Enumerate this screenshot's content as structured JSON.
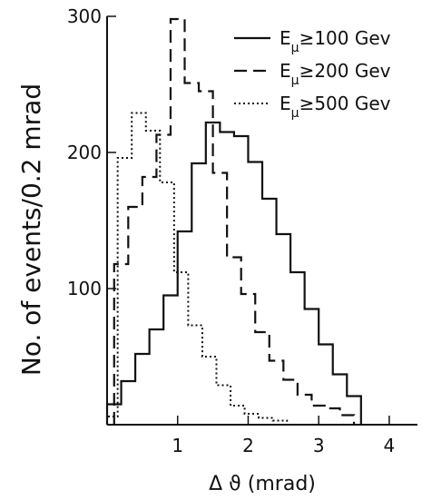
{
  "chart_data": {
    "type": "histogram-step",
    "x_label_parts": [
      "Δ",
      "ϑ",
      " (mrad)"
    ],
    "y_label": "No. of events/0.2 mrad",
    "x_ticks": [
      {
        "value": 1,
        "label": "1"
      },
      {
        "value": 2,
        "label": "2"
      },
      {
        "value": 3,
        "label": "3"
      },
      {
        "value": 4,
        "label": "4"
      }
    ],
    "y_ticks": [
      {
        "value": 100,
        "label": "100"
      },
      {
        "value": 200,
        "label": "200"
      },
      {
        "value": 300,
        "label": "300"
      }
    ],
    "xlim": [
      0,
      4.4
    ],
    "ylim": [
      0,
      300
    ],
    "bin_width": 0.2,
    "series": [
      {
        "name": "Eμ≥100 Gev",
        "legend_parts": [
          "E",
          "μ",
          "≥100 Gev"
        ],
        "dash": "solid",
        "x_edges": [
          0.0,
          0.2,
          0.4,
          0.6,
          0.8,
          1.0,
          1.2,
          1.4,
          1.6,
          1.8,
          2.0,
          2.2,
          2.4,
          2.6,
          2.8,
          3.0,
          3.2,
          3.4,
          3.6
        ],
        "values": [
          15,
          32,
          52,
          70,
          95,
          142,
          192,
          222,
          215,
          212,
          193,
          166,
          140,
          112,
          85,
          59,
          37,
          21
        ]
      },
      {
        "name": "Eμ≥200 Gev",
        "legend_parts": [
          "E",
          "μ",
          "≥200 Gev"
        ],
        "dash": "dashed",
        "x_edges": [
          0.1,
          0.3,
          0.5,
          0.7,
          0.9,
          1.1,
          1.3,
          1.5,
          1.7,
          1.9,
          2.1,
          2.3,
          2.5,
          2.7,
          2.9,
          3.1,
          3.3,
          3.5
        ],
        "values": [
          118,
          160,
          182,
          213,
          298,
          251,
          245,
          185,
          123,
          96,
          68,
          47,
          33,
          22,
          14,
          12,
          7
        ]
      },
      {
        "name": "Eμ≥500 Gev",
        "legend_parts": [
          "E",
          "μ",
          "≥500 Gev"
        ],
        "dash": "dotted",
        "x_edges": [
          0.0,
          0.15,
          0.35,
          0.55,
          0.75,
          0.95,
          1.15,
          1.35,
          1.55,
          1.75,
          1.95,
          2.15,
          2.35,
          2.55
        ],
        "values": [
          6,
          196,
          229,
          216,
          178,
          112,
          73,
          50,
          29,
          14,
          8,
          5,
          3
        ]
      }
    ]
  }
}
